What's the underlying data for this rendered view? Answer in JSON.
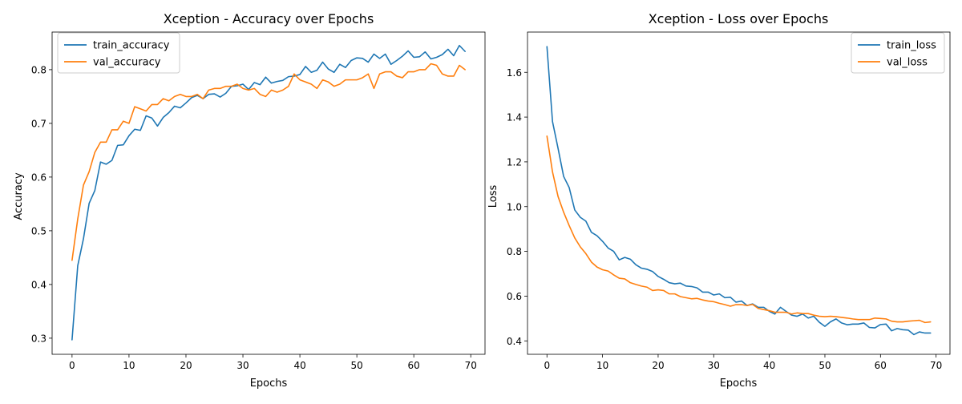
{
  "chart_data": [
    {
      "type": "line",
      "title": "Xception - Accuracy over Epochs",
      "xlabel": "Epochs",
      "ylabel": "Accuracy",
      "xlim": [
        -3.5,
        72.5
      ],
      "ylim": [
        0.27,
        0.87
      ],
      "xticks": [
        0,
        10,
        20,
        30,
        40,
        50,
        60,
        70
      ],
      "yticks": [
        0.3,
        0.4,
        0.5,
        0.6,
        0.7,
        0.8
      ],
      "legend_position": "top-left",
      "grid": false,
      "series": [
        {
          "name": "train_accuracy",
          "color": "#1f77b4",
          "values": [
            0.297,
            0.435,
            0.485,
            0.551,
            0.575,
            0.628,
            0.624,
            0.631,
            0.659,
            0.66,
            0.677,
            0.689,
            0.687,
            0.714,
            0.71,
            0.695,
            0.711,
            0.72,
            0.732,
            0.729,
            0.738,
            0.748,
            0.752,
            0.746,
            0.754,
            0.755,
            0.749,
            0.756,
            0.769,
            0.77,
            0.773,
            0.763,
            0.776,
            0.772,
            0.786,
            0.775,
            0.778,
            0.78,
            0.787,
            0.788,
            0.791,
            0.806,
            0.795,
            0.799,
            0.814,
            0.801,
            0.795,
            0.81,
            0.804,
            0.817,
            0.822,
            0.821,
            0.814,
            0.829,
            0.821,
            0.829,
            0.81,
            0.817,
            0.825,
            0.835,
            0.823,
            0.824,
            0.833,
            0.82,
            0.823,
            0.828,
            0.838,
            0.826,
            0.845,
            0.834
          ]
        },
        {
          "name": "val_accuracy",
          "color": "#ff7f0e",
          "values": [
            0.445,
            0.522,
            0.585,
            0.61,
            0.646,
            0.665,
            0.665,
            0.688,
            0.688,
            0.704,
            0.7,
            0.731,
            0.727,
            0.723,
            0.735,
            0.735,
            0.746,
            0.742,
            0.75,
            0.754,
            0.75,
            0.75,
            0.754,
            0.746,
            0.762,
            0.765,
            0.765,
            0.769,
            0.769,
            0.773,
            0.765,
            0.762,
            0.765,
            0.754,
            0.75,
            0.762,
            0.758,
            0.762,
            0.769,
            0.792,
            0.781,
            0.777,
            0.773,
            0.765,
            0.781,
            0.777,
            0.769,
            0.773,
            0.781,
            0.781,
            0.781,
            0.785,
            0.792,
            0.765,
            0.792,
            0.796,
            0.796,
            0.788,
            0.785,
            0.796,
            0.796,
            0.8,
            0.8,
            0.811,
            0.808,
            0.792,
            0.788,
            0.788,
            0.808,
            0.8
          ]
        }
      ]
    },
    {
      "type": "line",
      "title": "Xception - Loss over Epochs",
      "xlabel": "Epochs",
      "ylabel": "Loss",
      "xlim": [
        -3.5,
        72.5
      ],
      "ylim": [
        0.34,
        1.78
      ],
      "xticks": [
        0,
        10,
        20,
        30,
        40,
        50,
        60,
        70
      ],
      "yticks": [
        0.4,
        0.6,
        0.8,
        1.0,
        1.2,
        1.4,
        1.6
      ],
      "legend_position": "top-right",
      "grid": false,
      "series": [
        {
          "name": "train_loss",
          "color": "#1f77b4",
          "values": [
            1.715,
            1.38,
            1.26,
            1.135,
            1.085,
            0.985,
            0.952,
            0.935,
            0.885,
            0.87,
            0.845,
            0.815,
            0.8,
            0.762,
            0.773,
            0.765,
            0.74,
            0.725,
            0.72,
            0.71,
            0.688,
            0.675,
            0.66,
            0.655,
            0.658,
            0.645,
            0.643,
            0.637,
            0.618,
            0.618,
            0.605,
            0.61,
            0.593,
            0.595,
            0.573,
            0.578,
            0.558,
            0.565,
            0.55,
            0.55,
            0.532,
            0.52,
            0.55,
            0.532,
            0.515,
            0.51,
            0.52,
            0.502,
            0.51,
            0.483,
            0.465,
            0.485,
            0.498,
            0.48,
            0.472,
            0.475,
            0.475,
            0.48,
            0.46,
            0.458,
            0.473,
            0.475,
            0.445,
            0.455,
            0.45,
            0.448,
            0.428,
            0.44,
            0.435,
            0.435
          ]
        },
        {
          "name": "val_loss",
          "color": "#ff7f0e",
          "values": [
            1.315,
            1.155,
            1.045,
            0.975,
            0.915,
            0.86,
            0.82,
            0.79,
            0.752,
            0.73,
            0.718,
            0.712,
            0.695,
            0.68,
            0.677,
            0.66,
            0.652,
            0.645,
            0.64,
            0.625,
            0.628,
            0.625,
            0.61,
            0.61,
            0.598,
            0.593,
            0.588,
            0.59,
            0.583,
            0.578,
            0.575,
            0.568,
            0.562,
            0.555,
            0.562,
            0.562,
            0.558,
            0.563,
            0.545,
            0.54,
            0.535,
            0.528,
            0.528,
            0.528,
            0.52,
            0.525,
            0.522,
            0.522,
            0.515,
            0.51,
            0.508,
            0.51,
            0.508,
            0.505,
            0.502,
            0.498,
            0.495,
            0.495,
            0.495,
            0.502,
            0.5,
            0.498,
            0.488,
            0.485,
            0.485,
            0.488,
            0.49,
            0.492,
            0.482,
            0.485
          ]
        }
      ]
    }
  ]
}
